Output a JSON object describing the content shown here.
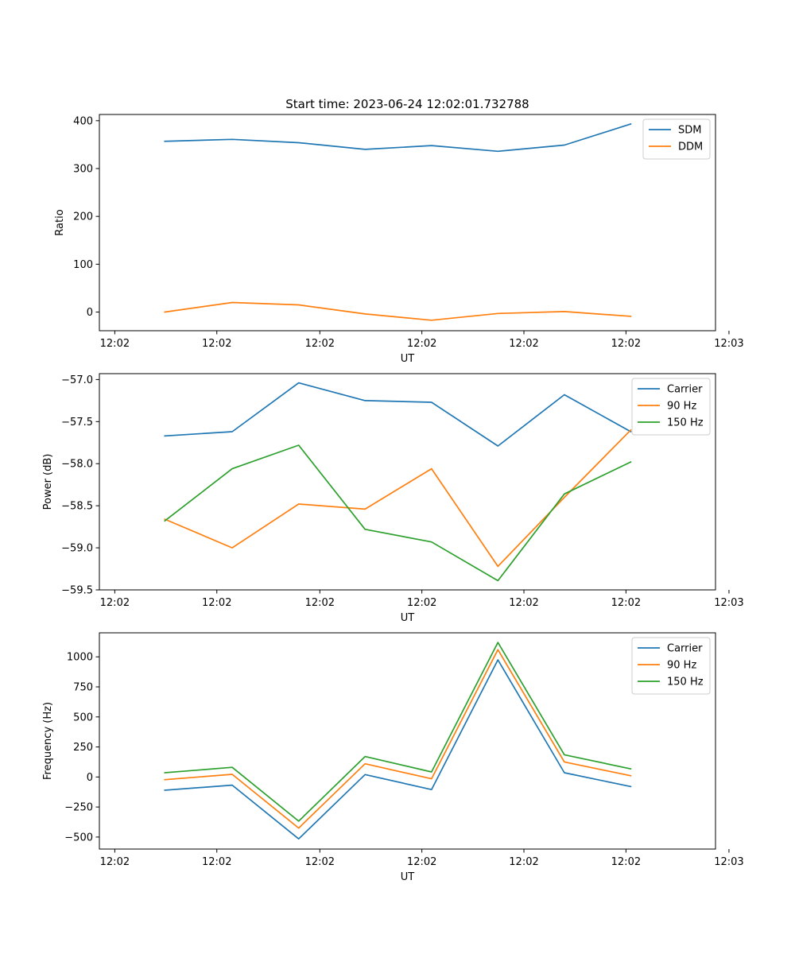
{
  "title": "Start time: 2023-06-24 12:02:01.732788",
  "chart_data": [
    {
      "type": "line",
      "xlabel": "UT",
      "ylabel": "Ratio",
      "x": [
        0.68,
        1.38,
        2.07,
        2.76,
        3.45,
        4.14,
        4.83,
        5.52
      ],
      "xlim": [
        0,
        6.4
      ],
      "xticks": [
        0.16,
        1.22,
        2.29,
        3.35,
        4.41,
        5.47,
        6.54
      ],
      "xtick_labels": [
        "12:02",
        "12:02",
        "12:02",
        "12:02",
        "12:02",
        "12:02",
        "12:03"
      ],
      "ylim": [
        -39,
        413
      ],
      "yticks": [
        0,
        100,
        200,
        300,
        400
      ],
      "ytick_labels": [
        "0",
        "100",
        "200",
        "300",
        "400"
      ],
      "legend": "top-right",
      "series": [
        {
          "name": "SDM",
          "color": "#1f77b4",
          "values": [
            357,
            361,
            354,
            340,
            348,
            336,
            349,
            393
          ]
        },
        {
          "name": "DDM",
          "color": "#ff7f0e",
          "values": [
            0,
            20,
            15,
            -4,
            -17,
            -3,
            1,
            -9
          ]
        }
      ]
    },
    {
      "type": "line",
      "xlabel": "UT",
      "ylabel": "Power (dB)",
      "x": [
        0.68,
        1.38,
        2.07,
        2.76,
        3.45,
        4.14,
        4.83,
        5.52
      ],
      "xlim": [
        0,
        6.4
      ],
      "xticks": [
        0.16,
        1.22,
        2.29,
        3.35,
        4.41,
        5.47,
        6.54
      ],
      "xtick_labels": [
        "12:02",
        "12:02",
        "12:02",
        "12:02",
        "12:02",
        "12:02",
        "12:03"
      ],
      "ylim": [
        -59.5,
        -56.93
      ],
      "yticks": [
        -59.5,
        -59.0,
        -58.5,
        -58.0,
        -57.5,
        -57.0
      ],
      "ytick_labels": [
        "−59.5",
        "−59.0",
        "−58.5",
        "−58.0",
        "−57.5",
        "−57.0"
      ],
      "legend": "top-right",
      "series": [
        {
          "name": "Carrier",
          "color": "#1f77b4",
          "values": [
            -57.67,
            -57.62,
            -57.04,
            -57.25,
            -57.27,
            -57.79,
            -57.18,
            -57.62
          ]
        },
        {
          "name": "90 Hz",
          "color": "#ff7f0e",
          "values": [
            -58.66,
            -59.0,
            -58.48,
            -58.54,
            -58.06,
            -59.22,
            -58.4,
            -57.6
          ]
        },
        {
          "name": "150 Hz",
          "color": "#2ca02c",
          "values": [
            -58.68,
            -58.06,
            -57.78,
            -58.78,
            -58.93,
            -59.39,
            -58.36,
            -57.98
          ]
        }
      ]
    },
    {
      "type": "line",
      "xlabel": "UT",
      "ylabel": "Frequency (Hz)",
      "x": [
        0.68,
        1.38,
        2.07,
        2.76,
        3.45,
        4.14,
        4.83,
        5.52
      ],
      "xlim": [
        0,
        6.4
      ],
      "xticks": [
        0.16,
        1.22,
        2.29,
        3.35,
        4.41,
        5.47,
        6.54
      ],
      "xtick_labels": [
        "12:02",
        "12:02",
        "12:02",
        "12:02",
        "12:02",
        "12:02",
        "12:03"
      ],
      "ylim": [
        -600,
        1200
      ],
      "yticks": [
        -500,
        -250,
        0,
        250,
        500,
        750,
        1000
      ],
      "ytick_labels": [
        "−500",
        "−250",
        "0",
        "250",
        "500",
        "750",
        "1000"
      ],
      "legend": "top-right",
      "series": [
        {
          "name": "Carrier",
          "color": "#1f77b4",
          "values": [
            -110,
            -68,
            -515,
            20,
            -105,
            975,
            35,
            -80
          ]
        },
        {
          "name": "90 Hz",
          "color": "#ff7f0e",
          "values": [
            -22,
            22,
            -425,
            110,
            -15,
            1060,
            125,
            10
          ]
        },
        {
          "name": "150 Hz",
          "color": "#2ca02c",
          "values": [
            35,
            80,
            -368,
            170,
            42,
            1120,
            185,
            68
          ]
        }
      ]
    }
  ]
}
